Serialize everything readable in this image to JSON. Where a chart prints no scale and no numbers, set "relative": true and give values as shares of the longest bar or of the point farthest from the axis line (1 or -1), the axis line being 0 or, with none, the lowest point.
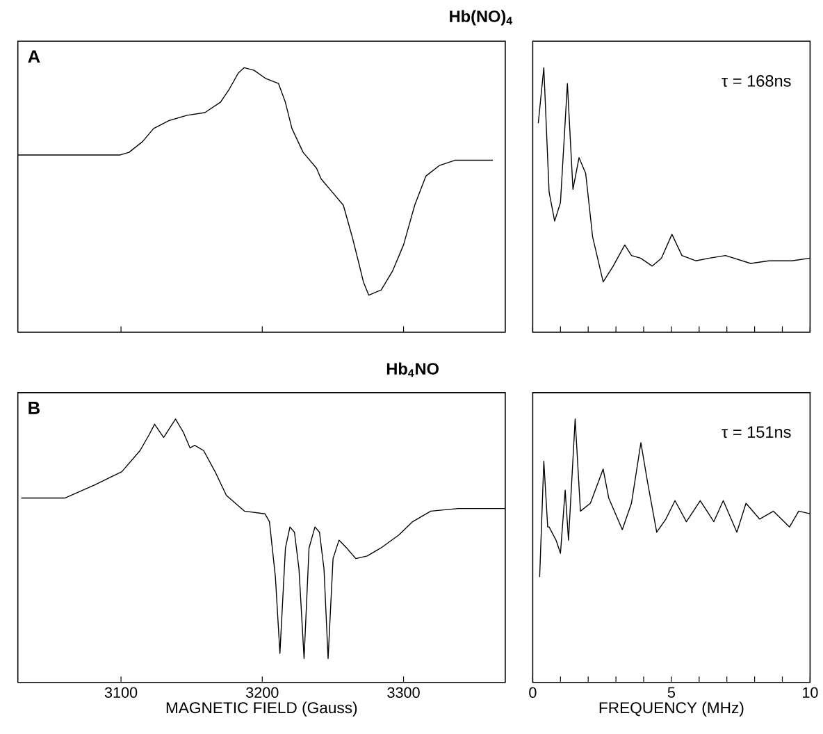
{
  "chart_data": [
    {
      "type": "line",
      "title": "Hb(NO)$_{4}$",
      "annotations": [
        "A"
      ],
      "relative": true,
      "tick_labels": false,
      "xlim": [
        3027,
        3372
      ],
      "xticks": [
        3100,
        3200,
        3300
      ],
      "x": [
        3027,
        3061.4,
        3099.4,
        3105.7,
        3115.2,
        3123.1,
        3134.1,
        3146.8,
        3159.4,
        3170.5,
        3176.8,
        3183.1,
        3187.2,
        3194.2,
        3202.1,
        3211.5,
        3216.3,
        3221.0,
        3228.9,
        3238.4,
        3241.6,
        3247.9,
        3257.4,
        3263.7,
        3268.4,
        3271.6,
        3275.4,
        3284.2,
        3292.1,
        3300.0,
        3307.9,
        3315.8,
        3325.3,
        3336.4,
        3363.2
      ],
      "series": [
        {
          "color": "#000000",
          "values": [
            0.67,
            0.67,
            0.67,
            0.68,
            0.72,
            0.77,
            0.8,
            0.82,
            0.83,
            0.87,
            0.92,
            0.98,
            1,
            0.99,
            0.96,
            0.94,
            0.87,
            0.77,
            0.68,
            0.62,
            0.58,
            0.54,
            0.48,
            0.36,
            0.26,
            0.19,
            0.14,
            0.16,
            0.23,
            0.33,
            0.48,
            0.59,
            0.63,
            0.65,
            0.65
          ]
        }
      ]
    },
    {
      "type": "line",
      "annotations": [
        "τ = 168ns"
      ],
      "relative": true,
      "tick_labels": false,
      "xlim": [
        0,
        10
      ],
      "xticks": [
        0,
        {
          "value": 1,
          "label": null
        },
        {
          "value": 2,
          "label": null
        },
        {
          "value": 3,
          "label": null
        },
        {
          "value": 4,
          "label": null
        },
        5,
        {
          "value": 6,
          "label": null
        },
        {
          "value": 7,
          "label": null
        },
        {
          "value": 8,
          "label": null
        },
        {
          "value": 9,
          "label": null
        },
        10
      ],
      "x": [
        0.2,
        0.4,
        0.59,
        0.79,
        1.0,
        1.25,
        1.45,
        1.67,
        1.91,
        2.16,
        2.54,
        2.9,
        3.32,
        3.56,
        3.89,
        4.31,
        4.64,
        5.02,
        5.38,
        5.88,
        6.37,
        6.95,
        7.86,
        8.51,
        9.34,
        10.0
      ],
      "series": [
        {
          "color": "#000000",
          "values": [
            0.79,
            1.0,
            0.53,
            0.42,
            0.49,
            0.94,
            0.54,
            0.66,
            0.6,
            0.36,
            0.19,
            0.25,
            0.33,
            0.29,
            0.28,
            0.25,
            0.28,
            0.37,
            0.29,
            0.27,
            0.28,
            0.29,
            0.26,
            0.27,
            0.27,
            0.28
          ]
        }
      ]
    },
    {
      "type": "line",
      "title": "Hb$_{4}$NO",
      "xlabel": "MAGNETIC FIELD (Gauss)",
      "annotations": [
        "B"
      ],
      "relative": true,
      "tick_labels": "x",
      "xlim": [
        3027,
        3372
      ],
      "xticks": [
        3100,
        3200,
        3300
      ],
      "x": [
        3029.3,
        3060.5,
        3081.4,
        3100.6,
        3113.5,
        3119.9,
        3123.8,
        3130.2,
        3138.6,
        3144.1,
        3148.9,
        3152.1,
        3158.5,
        3166.6,
        3174.6,
        3187.5,
        3201.9,
        3205.1,
        3209.3,
        3212.5,
        3216.4,
        3219.6,
        3222.8,
        3226.0,
        3229.6,
        3233.1,
        3237.3,
        3240.5,
        3243.7,
        3246.6,
        3250.1,
        3254.3,
        3259.8,
        3266.2,
        3274.3,
        3283.9,
        3296.8,
        3306.4,
        3319.3,
        3338.6,
        3371.7
      ],
      "series": [
        {
          "color": "#000000",
          "values": [
            0.7,
            0.7,
            0.75,
            0.8,
            0.88,
            0.94,
            0.98,
            0.93,
            1,
            0.95,
            0.89,
            0.9,
            0.88,
            0.8,
            0.71,
            0.65,
            0.64,
            0.61,
            0.4,
            0.11,
            0.51,
            0.59,
            0.57,
            0.43,
            0.09,
            0.51,
            0.59,
            0.57,
            0.43,
            0.09,
            0.47,
            0.54,
            0.51,
            0.47,
            0.48,
            0.51,
            0.56,
            0.61,
            0.65,
            0.66,
            0.66
          ]
        }
      ]
    },
    {
      "type": "line",
      "xlabel": "FREQUENCY (MHz)",
      "annotations": [
        "τ = 151ns"
      ],
      "relative": true,
      "tick_labels": "x",
      "xlim": [
        0,
        10
      ],
      "xticks": [
        0,
        {
          "value": 1,
          "label": null
        },
        {
          "value": 2,
          "label": null
        },
        {
          "value": 3,
          "label": null
        },
        {
          "value": 4,
          "label": null
        },
        5,
        {
          "value": 6,
          "label": null
        },
        {
          "value": 7,
          "label": null
        },
        {
          "value": 8,
          "label": null
        },
        {
          "value": 9,
          "label": null
        },
        10
      ],
      "x": [
        0.25,
        0.4,
        0.54,
        0.59,
        0.84,
        1.0,
        1.17,
        1.29,
        1.53,
        1.72,
        2.08,
        2.54,
        2.74,
        3.23,
        3.56,
        3.9,
        4.14,
        4.47,
        4.8,
        5.13,
        5.54,
        6.04,
        6.53,
        6.87,
        7.36,
        7.69,
        8.18,
        8.68,
        9.26,
        9.59,
        10.0
      ],
      "series": [
        {
          "color": "#000000",
          "values": [
            0.4,
            0.84,
            0.59,
            0.59,
            0.54,
            0.49,
            0.73,
            0.54,
            1,
            0.65,
            0.68,
            0.81,
            0.7,
            0.58,
            0.68,
            0.91,
            0.76,
            0.57,
            0.62,
            0.69,
            0.61,
            0.69,
            0.61,
            0.69,
            0.57,
            0.68,
            0.62,
            0.65,
            0.59,
            0.65,
            0.64
          ]
        }
      ]
    }
  ]
}
